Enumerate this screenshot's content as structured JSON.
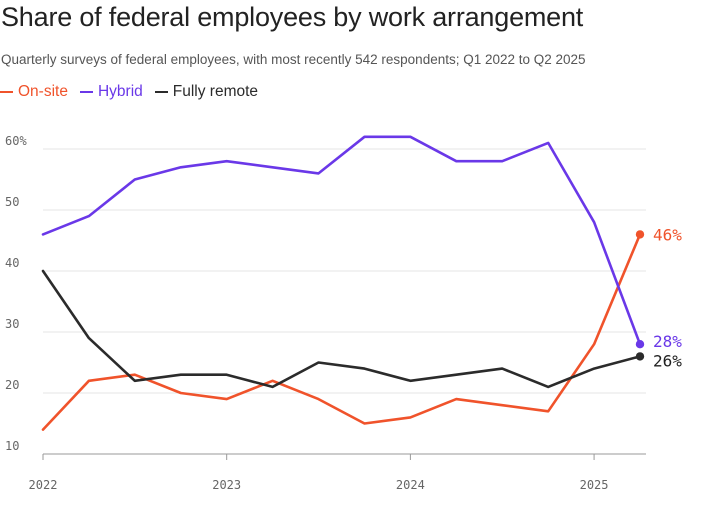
{
  "chart_data": {
    "type": "line",
    "title": "Share of federal employees by work arrangement",
    "subtitle": "Quarterly surveys of federal employees, with most recently 542 respondents; Q1 2022 to Q2 2025",
    "xlabel": "",
    "ylabel": "",
    "x": [
      2022.0,
      2022.25,
      2022.5,
      2022.75,
      2023.0,
      2023.25,
      2023.5,
      2023.75,
      2024.0,
      2024.25,
      2024.5,
      2024.75,
      2025.0,
      2025.25
    ],
    "x_ticks": [
      {
        "value": 2022,
        "label": "2022"
      },
      {
        "value": 2023,
        "label": "2023"
      },
      {
        "value": 2024,
        "label": "2024"
      },
      {
        "value": 2025,
        "label": "2025"
      }
    ],
    "ylim": [
      10,
      62
    ],
    "y_ticks": [
      {
        "value": 10,
        "label": "10"
      },
      {
        "value": 20,
        "label": "20"
      },
      {
        "value": 30,
        "label": "30"
      },
      {
        "value": 40,
        "label": "40"
      },
      {
        "value": 50,
        "label": "50"
      },
      {
        "value": 60,
        "label": "60%"
      }
    ],
    "grid": true,
    "series": [
      {
        "key": "onsite",
        "name": "On-site",
        "color": "#f0532b",
        "values": [
          14,
          22,
          23,
          20,
          19,
          22,
          19,
          15,
          16,
          19,
          18,
          17,
          28,
          46
        ],
        "end_label": "46%"
      },
      {
        "key": "hybrid",
        "name": "Hybrid",
        "color": "#6a38e8",
        "values": [
          46,
          49,
          55,
          57,
          58,
          57,
          56,
          62,
          62,
          58,
          58,
          61,
          48,
          28
        ],
        "end_label": "28%"
      },
      {
        "key": "remote",
        "name": "Fully remote",
        "color": "#2b2b2b",
        "values": [
          40,
          29,
          22,
          23,
          23,
          21,
          25,
          24,
          22,
          23,
          24,
          21,
          24,
          26
        ],
        "end_label": "26%"
      }
    ]
  }
}
